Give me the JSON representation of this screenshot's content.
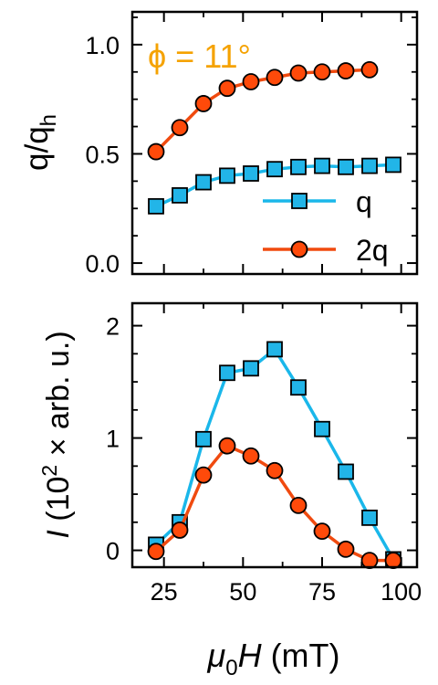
{
  "figure": {
    "annotation": {
      "text": "ϕ = 11°",
      "color": "#f5a200"
    },
    "xlabel": "μ0H (mT)",
    "xlabel_parts": {
      "mu": "μ",
      "sub": "0",
      "H": "H",
      "rest": " (mT)"
    },
    "top_ylabel_parts": {
      "q": "q/q",
      "sub": "h"
    },
    "bottom_ylabel_parts": {
      "I": "I",
      "pre": " (10",
      "sup": "2",
      "post": " × arb. u.)"
    }
  },
  "colors": {
    "q": "#1ab7ea",
    "2q": "#f04a0f",
    "q_fill": "#22b5e8",
    "2q_fill": "#ff4a0a",
    "annotation": "#f5a200"
  },
  "chart_data": [
    {
      "type": "line",
      "panel": "top",
      "xlim": [
        15,
        105
      ],
      "ylim": [
        -0.05,
        1.15
      ],
      "yticks": [
        0.0,
        0.5,
        1.0
      ],
      "ytick_labels": [
        "0.0",
        "0.5",
        "1.0"
      ],
      "xticks": [
        25,
        50,
        75,
        100
      ],
      "ylabel": "q/qh",
      "legend": "bottom-right",
      "series": [
        {
          "name": "q",
          "marker": "square",
          "x": [
            22.5,
            30,
            37.5,
            45,
            52.5,
            60,
            67.5,
            75,
            82.5,
            90,
            97.5
          ],
          "y": [
            0.26,
            0.31,
            0.37,
            0.4,
            0.41,
            0.43,
            0.44,
            0.445,
            0.44,
            0.445,
            0.45
          ]
        },
        {
          "name": "2q",
          "marker": "circle",
          "x": [
            22.5,
            30,
            37.5,
            45,
            52.5,
            60,
            67.5,
            75,
            82.5,
            90
          ],
          "y": [
            0.51,
            0.62,
            0.73,
            0.8,
            0.83,
            0.85,
            0.87,
            0.875,
            0.88,
            0.885
          ]
        }
      ]
    },
    {
      "type": "line",
      "panel": "bottom",
      "xlim": [
        15,
        105
      ],
      "ylim": [
        -0.15,
        2.2
      ],
      "yticks": [
        0,
        1,
        2
      ],
      "ytick_labels": [
        "0",
        "1",
        "2"
      ],
      "xticks": [
        25,
        50,
        75,
        100
      ],
      "xtick_labels": [
        "25",
        "50",
        "75",
        "100"
      ],
      "xlabel": "μ0H (mT)",
      "ylabel": "I (10² × arb. u.)",
      "series": [
        {
          "name": "q",
          "marker": "square",
          "x": [
            22.5,
            30,
            37.5,
            45,
            52.5,
            60,
            67.5,
            75,
            82.5,
            90,
            97.5
          ],
          "y": [
            0.05,
            0.25,
            0.99,
            1.58,
            1.62,
            1.79,
            1.45,
            1.08,
            0.7,
            0.29,
            -0.08
          ]
        },
        {
          "name": "2q",
          "marker": "circle",
          "x": [
            22.5,
            30,
            37.5,
            45,
            52.5,
            60,
            67.5,
            75,
            82.5,
            90,
            97.5
          ],
          "y": [
            -0.01,
            0.18,
            0.67,
            0.93,
            0.84,
            0.71,
            0.4,
            0.17,
            0.01,
            -0.09,
            -0.09
          ]
        }
      ]
    }
  ]
}
